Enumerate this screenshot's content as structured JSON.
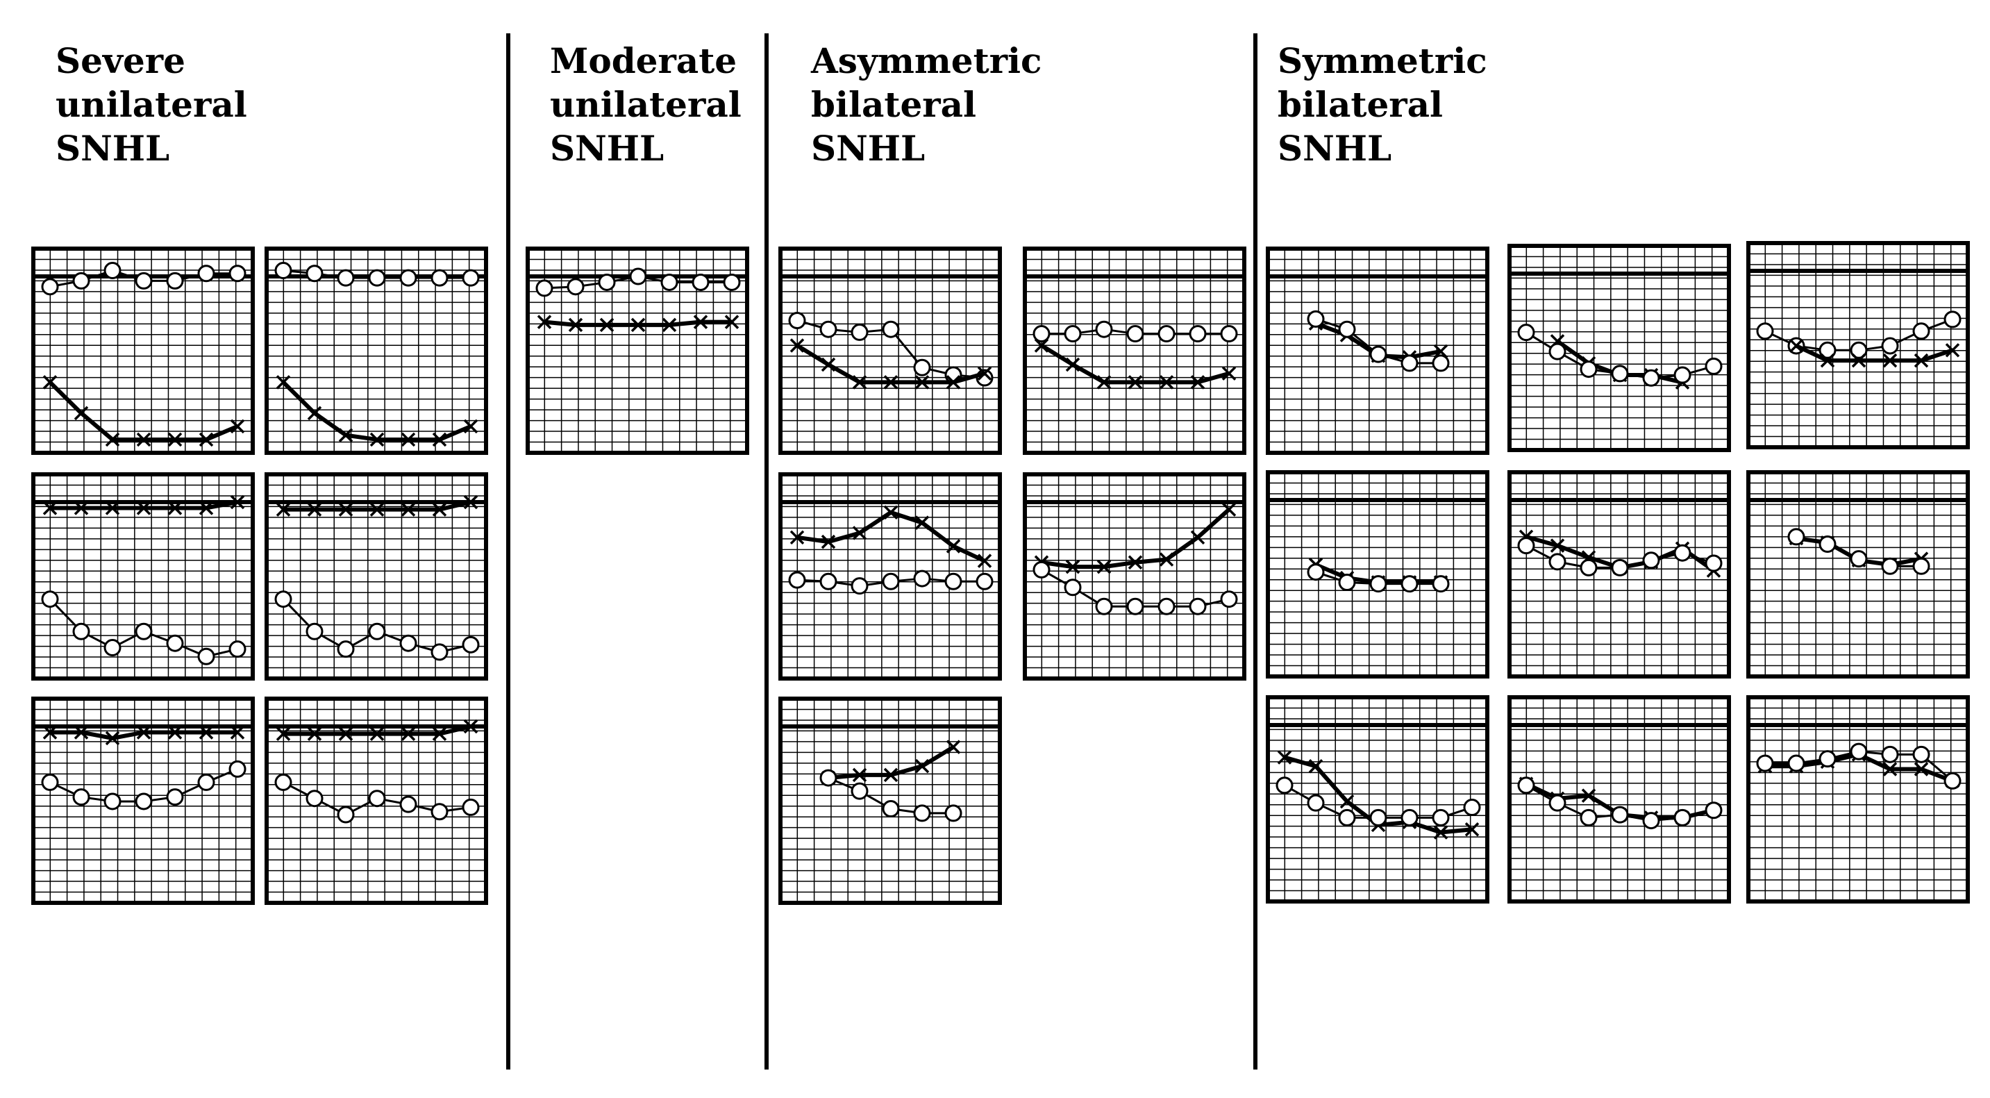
{
  "colors": {
    "line": "#000000",
    "background": "#ffffff",
    "marker_fill": "#ffffff"
  },
  "legend_markers": {
    "circle": "circle-marker",
    "cross": "cross-marker"
  },
  "groups": [
    {
      "id": "severe",
      "title": "Severe\nunilateral\nSNHL"
    },
    {
      "id": "moderate",
      "title": "Moderate\nunilateral\nSNHL"
    },
    {
      "id": "asymmetric",
      "title": "Asymmetric\nbilateral\nSNHL"
    },
    {
      "id": "symmetric",
      "title": "Symmetric\nbilateral\nSNHL"
    }
  ],
  "chart_data": [
    {
      "group": "severe",
      "type": "line",
      "series": [
        {
          "marker": "circle",
          "thickness": "thin",
          "x": [
            0,
            1,
            2,
            3,
            4,
            5,
            6
          ],
          "y": [
            0.7,
            0.3,
            -0.4,
            0.3,
            0.3,
            -0.2,
            -0.2
          ]
        },
        {
          "marker": "cross",
          "thickness": "thick",
          "x": [
            0,
            1,
            2,
            3,
            4,
            5,
            6
          ],
          "y": [
            7.2,
            9.3,
            11.1,
            11.1,
            11.1,
            11.1,
            10.2
          ]
        }
      ]
    },
    {
      "group": "severe",
      "type": "line",
      "series": [
        {
          "marker": "circle",
          "thickness": "thin",
          "x": [
            0,
            1,
            2,
            3,
            4,
            5,
            6
          ],
          "y": [
            -0.4,
            -0.2,
            0.1,
            0.1,
            0.1,
            0.1,
            0.1
          ]
        },
        {
          "marker": "cross",
          "thickness": "thick",
          "x": [
            0,
            1,
            2,
            3,
            4,
            5,
            6
          ],
          "y": [
            7.2,
            9.3,
            10.8,
            11.1,
            11.1,
            11.1,
            10.2
          ]
        }
      ]
    },
    {
      "group": "severe",
      "type": "line",
      "series": [
        {
          "marker": "cross",
          "thickness": "thick",
          "x": [
            0,
            1,
            2,
            3,
            4,
            5,
            6
          ],
          "y": [
            0.4,
            0.4,
            0.4,
            0.4,
            0.4,
            0.4,
            0.0
          ]
        },
        {
          "marker": "circle",
          "thickness": "thin",
          "x": [
            0,
            1,
            2,
            3,
            4,
            5,
            6
          ],
          "y": [
            6.6,
            8.8,
            9.9,
            8.8,
            9.6,
            10.5,
            10.0
          ]
        }
      ]
    },
    {
      "group": "severe",
      "type": "line",
      "series": [
        {
          "marker": "cross",
          "thickness": "thick",
          "x": [
            0,
            1,
            2,
            3,
            4,
            5,
            6
          ],
          "y": [
            0.5,
            0.5,
            0.5,
            0.5,
            0.5,
            0.5,
            0.0
          ]
        },
        {
          "marker": "circle",
          "thickness": "thin",
          "x": [
            0,
            1,
            2,
            3,
            4,
            5,
            6
          ],
          "y": [
            6.6,
            8.8,
            10.0,
            8.8,
            9.6,
            10.2,
            9.7
          ]
        }
      ]
    },
    {
      "group": "severe",
      "type": "line",
      "series": [
        {
          "marker": "cross",
          "thickness": "thick",
          "x": [
            0,
            1,
            2,
            3,
            4,
            5,
            6
          ],
          "y": [
            0.4,
            0.4,
            0.8,
            0.4,
            0.4,
            0.4,
            0.4
          ]
        },
        {
          "marker": "circle",
          "thickness": "thin",
          "x": [
            0,
            1,
            2,
            3,
            4,
            5,
            6
          ],
          "y": [
            3.8,
            4.8,
            5.1,
            5.1,
            4.8,
            3.8,
            2.9
          ]
        }
      ]
    },
    {
      "group": "severe",
      "type": "line",
      "series": [
        {
          "marker": "cross",
          "thickness": "thick",
          "x": [
            0,
            1,
            2,
            3,
            4,
            5,
            6
          ],
          "y": [
            0.5,
            0.5,
            0.5,
            0.5,
            0.5,
            0.5,
            0.0
          ]
        },
        {
          "marker": "circle",
          "thickness": "thin",
          "x": [
            0,
            1,
            2,
            3,
            4,
            5,
            6
          ],
          "y": [
            3.8,
            4.9,
            6.0,
            4.9,
            5.3,
            5.8,
            5.5
          ]
        }
      ]
    },
    {
      "group": "moderate",
      "type": "line",
      "series": [
        {
          "marker": "circle",
          "thickness": "thin",
          "x": [
            0,
            1,
            2,
            3,
            4,
            5,
            6
          ],
          "y": [
            0.8,
            0.7,
            0.4,
            0.0,
            0.4,
            0.4,
            0.4
          ]
        },
        {
          "marker": "cross",
          "thickness": "thick",
          "x": [
            0,
            1,
            2,
            3,
            4,
            5,
            6
          ],
          "y": [
            3.1,
            3.3,
            3.3,
            3.3,
            3.3,
            3.1,
            3.1
          ]
        }
      ]
    },
    {
      "group": "asymmetric",
      "type": "line",
      "series": [
        {
          "marker": "circle",
          "thickness": "thin",
          "x": [
            0,
            1,
            2,
            3,
            4,
            5,
            6
          ],
          "y": [
            3.0,
            3.6,
            3.8,
            3.6,
            6.2,
            6.7,
            6.9
          ]
        },
        {
          "marker": "cross",
          "thickness": "thick",
          "x": [
            0,
            1,
            2,
            3,
            4,
            5,
            6
          ],
          "y": [
            4.7,
            6.0,
            7.2,
            7.2,
            7.2,
            7.2,
            6.6
          ]
        }
      ]
    },
    {
      "group": "asymmetric",
      "type": "line",
      "series": [
        {
          "marker": "circle",
          "thickness": "thin",
          "x": [
            0,
            1,
            2,
            3,
            4,
            5,
            6
          ],
          "y": [
            3.9,
            3.9,
            3.6,
            3.9,
            3.9,
            3.9,
            3.9
          ]
        },
        {
          "marker": "cross",
          "thickness": "thick",
          "x": [
            0,
            1,
            2,
            3,
            4,
            5,
            6
          ],
          "y": [
            4.7,
            6.0,
            7.2,
            7.2,
            7.2,
            7.2,
            6.6
          ]
        }
      ]
    },
    {
      "group": "asymmetric",
      "type": "line",
      "series": [
        {
          "marker": "cross",
          "thickness": "thick",
          "x": [
            0,
            1,
            2,
            3,
            4,
            5,
            6
          ],
          "y": [
            2.4,
            2.7,
            2.1,
            0.7,
            1.4,
            3.0,
            4.0
          ]
        },
        {
          "marker": "circle",
          "thickness": "thin",
          "x": [
            0,
            1,
            2,
            3,
            4,
            5,
            6
          ],
          "y": [
            5.3,
            5.4,
            5.7,
            5.4,
            5.2,
            5.4,
            5.4
          ]
        }
      ]
    },
    {
      "group": "asymmetric",
      "type": "line",
      "series": [
        {
          "marker": "cross",
          "thickness": "thick",
          "x": [
            0,
            1,
            2,
            3,
            4,
            5,
            6
          ],
          "y": [
            4.1,
            4.4,
            4.4,
            4.1,
            3.9,
            2.4,
            0.5
          ]
        },
        {
          "marker": "circle",
          "thickness": "thin",
          "x": [
            0,
            1,
            2,
            3,
            4,
            5,
            6
          ],
          "y": [
            4.6,
            5.8,
            7.1,
            7.1,
            7.1,
            7.1,
            6.6
          ]
        }
      ]
    },
    {
      "group": "asymmetric",
      "type": "line",
      "series": [
        {
          "marker": "cross",
          "thickness": "thick",
          "x": [
            1,
            2,
            3,
            4,
            5
          ],
          "y": [
            3.5,
            3.3,
            3.3,
            2.7,
            1.4
          ]
        },
        {
          "marker": "circle",
          "thickness": "thin",
          "x": [
            1,
            2,
            3,
            4,
            5
          ],
          "y": [
            3.5,
            4.4,
            5.6,
            5.9,
            5.9
          ]
        }
      ]
    },
    {
      "group": "symmetric",
      "type": "line",
      "series": [
        {
          "marker": "cross",
          "thickness": "thick",
          "x": [
            1,
            2,
            3,
            4,
            5
          ],
          "y": [
            3.2,
            4.0,
            5.4,
            5.5,
            5.1
          ]
        },
        {
          "marker": "circle",
          "thickness": "thin",
          "x": [
            1,
            2,
            3,
            4,
            5
          ],
          "y": [
            2.9,
            3.6,
            5.3,
            5.9,
            5.9
          ]
        }
      ]
    },
    {
      "group": "symmetric",
      "type": "line",
      "series": [
        {
          "marker": "cross",
          "thickness": "thick",
          "x": [
            1,
            2,
            3,
            4,
            5
          ],
          "y": [
            4.6,
            6.1,
            6.9,
            6.9,
            7.4
          ]
        },
        {
          "marker": "circle",
          "thickness": "thin",
          "x": [
            0,
            1,
            2,
            3,
            4,
            5,
            6
          ],
          "y": [
            4.0,
            5.3,
            6.5,
            6.8,
            7.1,
            6.9,
            6.3
          ]
        }
      ]
    },
    {
      "group": "symmetric",
      "type": "line",
      "series": [
        {
          "marker": "circle",
          "thickness": "thin",
          "x": [
            0,
            1,
            2,
            3,
            4,
            5,
            6
          ],
          "y": [
            4.1,
            5.1,
            5.4,
            5.4,
            5.1,
            4.1,
            3.3
          ]
        },
        {
          "marker": "cross",
          "thickness": "thick",
          "x": [
            1,
            2,
            3,
            4,
            5,
            6
          ],
          "y": [
            5.1,
            6.1,
            6.1,
            6.1,
            6.1,
            5.4
          ]
        }
      ]
    },
    {
      "group": "symmetric",
      "type": "line",
      "series": [
        {
          "marker": "cross",
          "thickness": "thick",
          "x": [
            1,
            2,
            3,
            4,
            5
          ],
          "y": [
            4.4,
            5.3,
            5.6,
            5.6,
            5.6
          ]
        },
        {
          "marker": "circle",
          "thickness": "thin",
          "x": [
            1,
            2,
            3,
            4,
            5
          ],
          "y": [
            4.9,
            5.6,
            5.7,
            5.7,
            5.7
          ]
        }
      ]
    },
    {
      "group": "symmetric",
      "type": "line",
      "series": [
        {
          "marker": "cross",
          "thickness": "thick",
          "x": [
            0,
            1,
            2,
            3,
            4,
            5,
            6
          ],
          "y": [
            2.5,
            3.1,
            3.9,
            4.6,
            4.2,
            3.3,
            4.8
          ]
        },
        {
          "marker": "circle",
          "thickness": "thin",
          "x": [
            0,
            1,
            2,
            3,
            4,
            5,
            6
          ],
          "y": [
            3.1,
            4.2,
            4.6,
            4.6,
            4.1,
            3.6,
            4.3
          ]
        }
      ]
    },
    {
      "group": "symmetric",
      "type": "line",
      "series": [
        {
          "marker": "cross",
          "thickness": "thick",
          "x": [
            1,
            2,
            3,
            4,
            5
          ],
          "y": [
            2.6,
            2.9,
            4.1,
            4.4,
            4.0
          ]
        },
        {
          "marker": "circle",
          "thickness": "thin",
          "x": [
            1,
            2,
            3,
            4,
            5
          ],
          "y": [
            2.5,
            3.0,
            4.0,
            4.5,
            4.5
          ]
        }
      ]
    },
    {
      "group": "symmetric",
      "type": "line",
      "series": [
        {
          "marker": "cross",
          "thickness": "thick",
          "x": [
            0,
            1,
            2,
            3,
            4,
            5,
            6
          ],
          "y": [
            2.2,
            2.8,
            5.2,
            6.8,
            6.6,
            7.3,
            7.1
          ]
        },
        {
          "marker": "circle",
          "thickness": "thin",
          "x": [
            0,
            1,
            2,
            3,
            4,
            5,
            6
          ],
          "y": [
            4.1,
            5.3,
            6.3,
            6.3,
            6.3,
            6.3,
            5.6
          ]
        }
      ]
    },
    {
      "group": "symmetric",
      "type": "line",
      "series": [
        {
          "marker": "cross",
          "thickness": "thick",
          "x": [
            0,
            1,
            2,
            3,
            4,
            5,
            6
          ],
          "y": [
            4.0,
            5.0,
            4.8,
            6.1,
            6.3,
            6.3,
            5.8
          ]
        },
        {
          "marker": "circle",
          "thickness": "thin",
          "x": [
            0,
            1,
            2,
            3,
            4,
            5,
            6
          ],
          "y": [
            4.1,
            5.3,
            6.3,
            6.1,
            6.5,
            6.3,
            5.8
          ]
        }
      ]
    },
    {
      "group": "symmetric",
      "type": "line",
      "series": [
        {
          "marker": "cross",
          "thickness": "thick",
          "x": [
            0,
            1,
            2,
            3,
            4,
            5,
            6
          ],
          "y": [
            2.8,
            2.8,
            2.5,
            2.0,
            3.0,
            3.0,
            3.8
          ]
        },
        {
          "marker": "circle",
          "thickness": "thin",
          "x": [
            0,
            1,
            2,
            3,
            4,
            5,
            6
          ],
          "y": [
            2.6,
            2.6,
            2.3,
            1.8,
            2.0,
            2.0,
            3.8
          ]
        }
      ]
    }
  ]
}
